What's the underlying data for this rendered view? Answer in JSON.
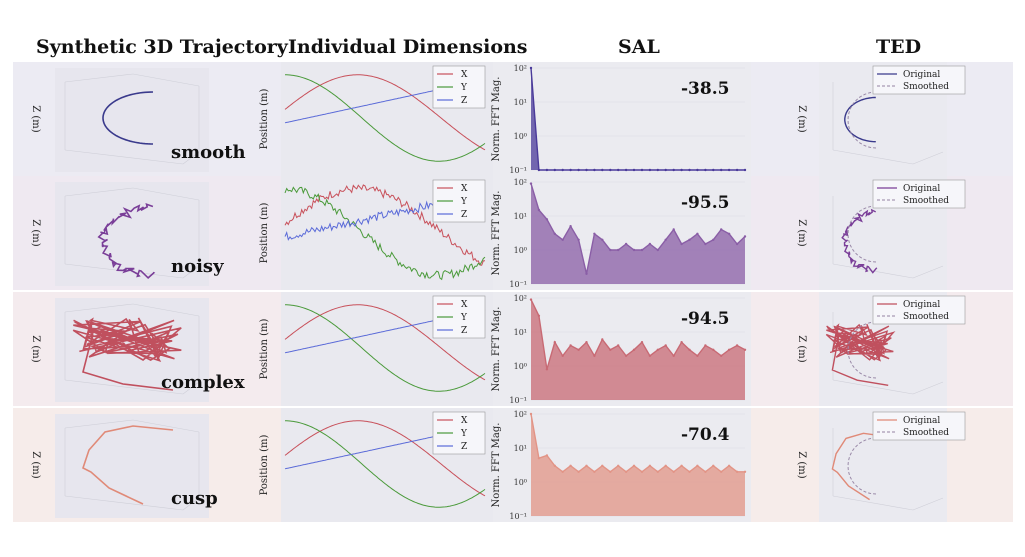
{
  "titles": {
    "col1": "Synthetic 3D Trajectory",
    "col2": "Individual Dimensions",
    "col3": "SAL",
    "col4": "TED"
  },
  "axis_labels": {
    "z_axis": "Z (m)",
    "position": "Position (m)",
    "fft": "Norm. FFT Mag.",
    "fft_ticks": [
      "10⁻¹",
      "10⁰",
      "10¹",
      "10²"
    ]
  },
  "legends": {
    "dims": [
      "X",
      "Y",
      "Z"
    ],
    "ted": [
      "Original",
      "Smoothed"
    ]
  },
  "colors": {
    "x": "#c8505a",
    "y": "#4a9a3a",
    "z": "#5a6ad8"
  },
  "chart_data": [
    {
      "type": "line",
      "row": "smooth",
      "label": "smooth",
      "row_bg": "#ecebf3",
      "trajectory_color": "#3a3a8c",
      "sal_color": "#4a3a9a",
      "sal_score": "-38.5",
      "fft_yscale": "log",
      "fft_ylim": [
        0.1,
        100
      ],
      "fft": [
        100,
        0.1,
        0.1,
        0.1,
        0.1,
        0.1,
        0.1,
        0.1,
        0.1,
        0.1,
        0.1,
        0.1,
        0.1,
        0.1,
        0.1,
        0.1,
        0.1,
        0.1,
        0.1,
        0.1,
        0.1,
        0.1,
        0.1,
        0.1,
        0.1,
        0.1,
        0.1,
        0.1
      ],
      "noise": 0
    },
    {
      "type": "line",
      "row": "noisy",
      "label": "noisy",
      "row_bg": "#efe9f1",
      "trajectory_color": "#7a3e98",
      "sal_color": "#8a5ea6",
      "sal_score": "-95.5",
      "fft_yscale": "log",
      "fft_ylim": [
        0.1,
        100
      ],
      "fft": [
        90,
        15,
        8,
        3,
        2,
        5,
        2,
        0.2,
        3,
        2,
        1,
        1,
        1.5,
        1,
        1,
        1.5,
        1,
        2,
        4,
        1.5,
        2,
        3,
        1.5,
        2,
        4,
        3,
        1.5,
        2.5
      ],
      "noise": 1
    },
    {
      "type": "line",
      "row": "complex",
      "label": "complex",
      "row_bg": "#f4ebee",
      "trajectory_color": "#c0505e",
      "sal_color": "#c86a74",
      "sal_score": "-94.5",
      "fft_yscale": "log",
      "fft_ylim": [
        0.1,
        100
      ],
      "fft": [
        90,
        30,
        0.8,
        5,
        2,
        4,
        3,
        5,
        2,
        6,
        3,
        4,
        2,
        3,
        5,
        2,
        3,
        4,
        2,
        5,
        3,
        2,
        4,
        3,
        2,
        3,
        4,
        3
      ],
      "noise": 2
    },
    {
      "type": "line",
      "row": "cusp",
      "label": "cusp",
      "row_bg": "#f6ecea",
      "trajectory_color": "#e08a78",
      "sal_color": "#e29486",
      "sal_score": "-70.4",
      "fft_yscale": "log",
      "fft_ylim": [
        0.1,
        100
      ],
      "fft": [
        100,
        5,
        6,
        3,
        2,
        3,
        2,
        3,
        2,
        3,
        2,
        3,
        2,
        3,
        2,
        3,
        2,
        3,
        2,
        3,
        2,
        3,
        2,
        3,
        2,
        3,
        2,
        2
      ],
      "noise": 3
    }
  ]
}
